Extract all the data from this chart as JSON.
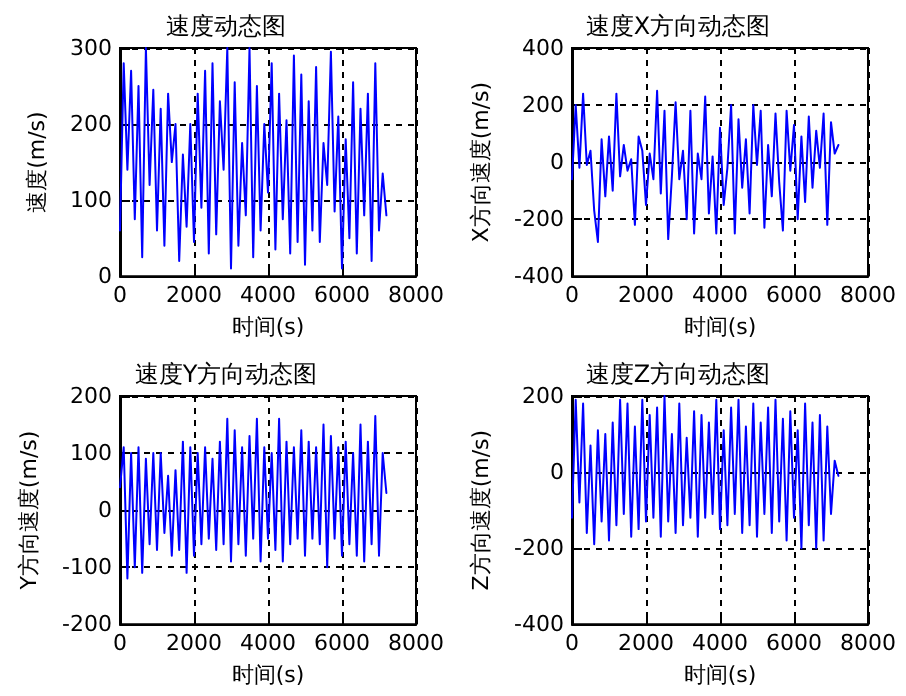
{
  "chart_data": [
    {
      "type": "line",
      "title": "速度动态图",
      "xlabel": "时间(s)",
      "ylabel": "速度(m/s)",
      "xlim": [
        0,
        8000
      ],
      "xticks": [
        0,
        2000,
        4000,
        6000,
        8000
      ],
      "ylim": [
        0,
        300
      ],
      "yticks": [
        0,
        100,
        200,
        300
      ],
      "grid": true,
      "marker": "none",
      "line_style": "solid",
      "x": [
        0,
        100,
        200,
        300,
        400,
        500,
        600,
        700,
        800,
        900,
        1000,
        1100,
        1200,
        1300,
        1400,
        1500,
        1600,
        1700,
        1800,
        1900,
        2000,
        2100,
        2200,
        2300,
        2400,
        2500,
        2600,
        2700,
        2800,
        2900,
        3000,
        3100,
        3200,
        3300,
        3400,
        3500,
        3600,
        3700,
        3800,
        3900,
        4000,
        4100,
        4200,
        4300,
        4400,
        4500,
        4600,
        4700,
        4800,
        4900,
        5000,
        5100,
        5200,
        5300,
        5400,
        5500,
        5600,
        5700,
        5800,
        5900,
        6000,
        6100,
        6200,
        6300,
        6400,
        6500,
        6600,
        6700,
        6800,
        6900,
        7000,
        7100,
        7200
      ],
      "series": [
        {
          "color": "#0000ff",
          "values": [
            60,
            280,
            140,
            270,
            75,
            250,
            25,
            300,
            120,
            245,
            60,
            220,
            40,
            240,
            150,
            200,
            20,
            160,
            65,
            200,
            45,
            240,
            90,
            270,
            30,
            280,
            55,
            230,
            140,
            300,
            10,
            255,
            40,
            175,
            80,
            300,
            25,
            250,
            60,
            200,
            110,
            280,
            35,
            240,
            75,
            205,
            30,
            290,
            45,
            265,
            15,
            230,
            60,
            275,
            45,
            175,
            120,
            295,
            85,
            210,
            10,
            180,
            50,
            255,
            30,
            220,
            80,
            240,
            20,
            280,
            60,
            135,
            80
          ]
        }
      ]
    },
    {
      "type": "line",
      "title": "速度X方向动态图",
      "xlabel": "时间(s)",
      "ylabel": "X方向速度(m/s)",
      "xlim": [
        0,
        8000
      ],
      "xticks": [
        0,
        2000,
        4000,
        6000,
        8000
      ],
      "ylim": [
        -400,
        400
      ],
      "yticks": [
        -400,
        -200,
        0,
        200,
        400
      ],
      "grid": true,
      "marker": "none",
      "line_style": "solid",
      "x": [
        0,
        100,
        200,
        300,
        400,
        500,
        600,
        700,
        800,
        900,
        1000,
        1100,
        1200,
        1300,
        1400,
        1500,
        1600,
        1700,
        1800,
        1900,
        2000,
        2100,
        2200,
        2300,
        2400,
        2500,
        2600,
        2700,
        2800,
        2900,
        3000,
        3100,
        3200,
        3300,
        3400,
        3500,
        3600,
        3700,
        3800,
        3900,
        4000,
        4100,
        4200,
        4300,
        4400,
        4500,
        4600,
        4700,
        4800,
        4900,
        5000,
        5100,
        5200,
        5300,
        5400,
        5500,
        5600,
        5700,
        5800,
        5900,
        6000,
        6100,
        6200,
        6300,
        6400,
        6500,
        6600,
        6700,
        6800,
        6900,
        7000,
        7100,
        7200
      ],
      "series": [
        {
          "color": "#0000ff",
          "values": [
            -60,
            200,
            -20,
            240,
            -10,
            40,
            -170,
            -280,
            80,
            -120,
            90,
            -100,
            240,
            -50,
            60,
            -30,
            10,
            -220,
            90,
            40,
            -150,
            30,
            -60,
            250,
            -110,
            180,
            -270,
            -50,
            210,
            -60,
            40,
            -200,
            180,
            -250,
            30,
            -60,
            230,
            -180,
            20,
            -250,
            120,
            -150,
            -20,
            200,
            -250,
            150,
            -90,
            80,
            -180,
            200,
            -10,
            180,
            -230,
            60,
            -120,
            170,
            -70,
            -240,
            180,
            -30,
            130,
            -200,
            90,
            -140,
            160,
            -90,
            110,
            -20,
            170,
            -220,
            140,
            30,
            60
          ]
        }
      ]
    },
    {
      "type": "line",
      "title": "速度Y方向动态图",
      "xlabel": "时间(s)",
      "ylabel": "Y方向速度(m/s)",
      "xlim": [
        0,
        8000
      ],
      "xticks": [
        0,
        2000,
        4000,
        6000,
        8000
      ],
      "ylim": [
        -200,
        200
      ],
      "yticks": [
        -200,
        -100,
        0,
        100,
        200
      ],
      "grid": true,
      "marker": "none",
      "line_style": "solid",
      "x": [
        0,
        100,
        200,
        300,
        400,
        500,
        600,
        700,
        800,
        900,
        1000,
        1100,
        1200,
        1300,
        1400,
        1500,
        1600,
        1700,
        1800,
        1900,
        2000,
        2100,
        2200,
        2300,
        2400,
        2500,
        2600,
        2700,
        2800,
        2900,
        3000,
        3100,
        3200,
        3300,
        3400,
        3500,
        3600,
        3700,
        3800,
        3900,
        4000,
        4100,
        4200,
        4300,
        4400,
        4500,
        4600,
        4700,
        4800,
        4900,
        5000,
        5100,
        5200,
        5300,
        5400,
        5500,
        5600,
        5700,
        5800,
        5900,
        6000,
        6100,
        6200,
        6300,
        6400,
        6500,
        6600,
        6700,
        6800,
        6900,
        7000,
        7100,
        7200
      ],
      "series": [
        {
          "color": "#0000ff",
          "values": [
            40,
            110,
            -120,
            100,
            -100,
            110,
            -110,
            90,
            -60,
            100,
            -70,
            100,
            -40,
            60,
            -80,
            70,
            -70,
            120,
            -110,
            110,
            -80,
            100,
            -60,
            110,
            -50,
            90,
            -70,
            120,
            -60,
            160,
            -90,
            140,
            -60,
            110,
            -80,
            130,
            -50,
            160,
            -90,
            110,
            -50,
            100,
            -70,
            160,
            -90,
            120,
            -60,
            110,
            -50,
            140,
            -80,
            120,
            -50,
            110,
            -60,
            150,
            -100,
            130,
            -50,
            110,
            -80,
            120,
            -60,
            100,
            -80,
            150,
            -90,
            120,
            -60,
            165,
            -80,
            100,
            30
          ]
        }
      ]
    },
    {
      "type": "line",
      "title": "速度Z方向动态图",
      "xlabel": "时间(s)",
      "ylabel": "Z方向速度(m/s)",
      "xlim": [
        0,
        8000
      ],
      "xticks": [
        0,
        2000,
        4000,
        6000,
        8000
      ],
      "ylim": [
        -400,
        200
      ],
      "yticks": [
        -400,
        -200,
        0,
        200
      ],
      "grid": true,
      "marker": "none",
      "line_style": "solid",
      "x": [
        0,
        100,
        200,
        300,
        400,
        500,
        600,
        700,
        800,
        900,
        1000,
        1100,
        1200,
        1300,
        1400,
        1500,
        1600,
        1700,
        1800,
        1900,
        2000,
        2100,
        2200,
        2300,
        2400,
        2500,
        2600,
        2700,
        2800,
        2900,
        3000,
        3100,
        3200,
        3300,
        3400,
        3500,
        3600,
        3700,
        3800,
        3900,
        4000,
        4100,
        4200,
        4300,
        4400,
        4500,
        4600,
        4700,
        4800,
        4900,
        5000,
        5100,
        5200,
        5300,
        5400,
        5500,
        5600,
        5700,
        5800,
        5900,
        6000,
        6100,
        6200,
        6300,
        6400,
        6500,
        6600,
        6700,
        6800,
        6900,
        7000,
        7100,
        7200
      ],
      "series": [
        {
          "color": "#0000ff",
          "values": [
            -120,
            190,
            -80,
            180,
            -160,
            70,
            -190,
            110,
            -130,
            100,
            -180,
            130,
            -140,
            190,
            -110,
            180,
            -170,
            120,
            -150,
            190,
            -130,
            150,
            -120,
            170,
            -170,
            200,
            -130,
            100,
            -160,
            180,
            -140,
            90,
            -120,
            160,
            -170,
            150,
            -120,
            130,
            -110,
            190,
            -150,
            110,
            -140,
            170,
            -110,
            190,
            -160,
            120,
            -140,
            180,
            -170,
            130,
            -110,
            170,
            -160,
            190,
            -130,
            140,
            -180,
            160,
            -120,
            110,
            -200,
            180,
            -140,
            130,
            -200,
            150,
            -180,
            120,
            -110,
            30,
            -10
          ]
        }
      ]
    }
  ]
}
